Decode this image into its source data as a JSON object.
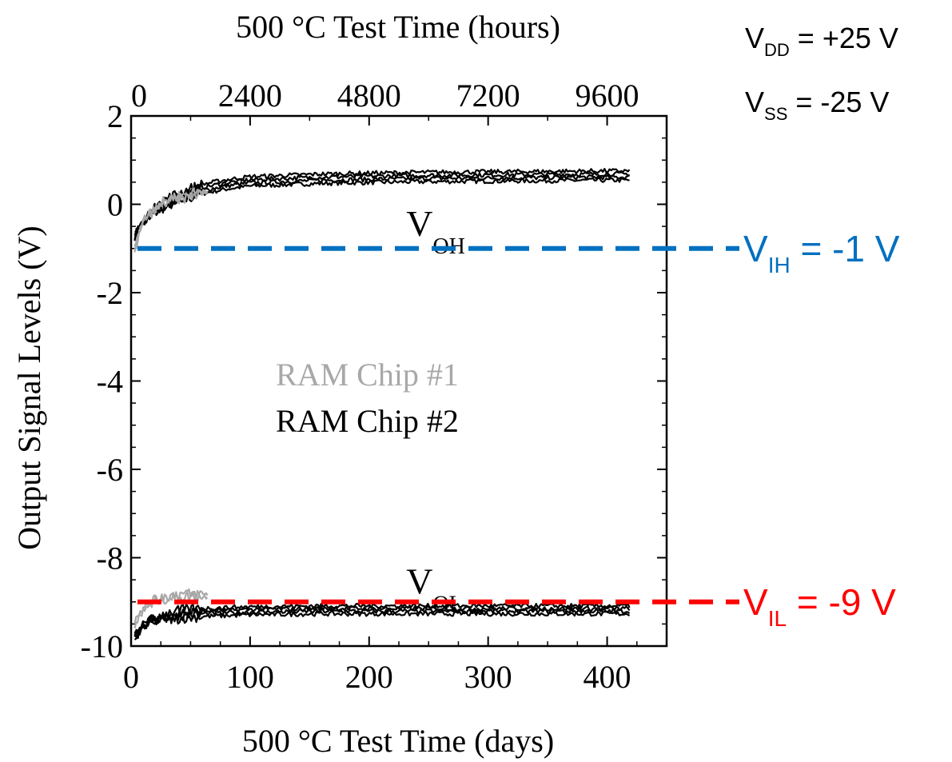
{
  "chart_data": {
    "type": "line",
    "x_axis_bottom": {
      "label": "500 °C Test Time (days)",
      "range": [
        0,
        450
      ],
      "ticks": [
        0,
        100,
        200,
        300,
        400
      ],
      "tick_labels": [
        "0",
        "100",
        "200",
        "300",
        "400"
      ]
    },
    "x_axis_top": {
      "label": "500 °C Test Time (hours)",
      "range": [
        0,
        10800
      ],
      "ticks": [
        0,
        2400,
        4800,
        7200,
        9600
      ],
      "tick_labels": [
        "0",
        "2400",
        "4800",
        "7200",
        "9600"
      ]
    },
    "y_axis": {
      "label": "Output Signal Levels (V)",
      "range": [
        -10,
        2
      ],
      "ticks": [
        -10,
        -8,
        -6,
        -4,
        -2,
        0,
        2
      ],
      "tick_labels": [
        "-10",
        "-8",
        "-6",
        "-4",
        "-2",
        "0",
        "2"
      ]
    },
    "grid": false,
    "legend": {
      "placement": "center",
      "entries": [
        {
          "label": "RAM Chip #1",
          "color": "#a8a8a8"
        },
        {
          "label": "RAM Chip #2",
          "color": "#000000"
        }
      ]
    },
    "series": [
      {
        "name": "RAM Chip #1",
        "color": "#a8a8a8",
        "level": "VOH",
        "x": [
          3,
          8,
          12,
          18,
          25,
          32,
          40,
          48,
          55,
          60,
          65
        ],
        "y": [
          -1.0,
          -0.55,
          -0.3,
          -0.15,
          0.0,
          0.1,
          0.15,
          0.2,
          0.25,
          0.28,
          0.3
        ]
      },
      {
        "name": "RAM Chip #1",
        "color": "#a8a8a8",
        "level": "VOL",
        "x": [
          3,
          8,
          15,
          22,
          30,
          40,
          50,
          60,
          65
        ],
        "y": [
          -9.5,
          -9.25,
          -9.05,
          -8.95,
          -8.9,
          -8.85,
          -8.85,
          -8.85,
          -8.85
        ]
      },
      {
        "name": "RAM Chip #2",
        "color": "#000000",
        "level": "VOH",
        "x": [
          3,
          10,
          20,
          30,
          45,
          60,
          80,
          100,
          130,
          160,
          200,
          250,
          300,
          350,
          400,
          420
        ],
        "y": [
          -0.7,
          -0.4,
          -0.15,
          0.05,
          0.2,
          0.35,
          0.45,
          0.52,
          0.55,
          0.58,
          0.6,
          0.62,
          0.63,
          0.64,
          0.65,
          0.65
        ]
      },
      {
        "name": "RAM Chip #2",
        "color": "#000000",
        "level": "VOL",
        "x": [
          3,
          10,
          20,
          30,
          45,
          60,
          80,
          100,
          130,
          160,
          200,
          250,
          300,
          350,
          400,
          420
        ],
        "y": [
          -9.8,
          -9.55,
          -9.4,
          -9.32,
          -9.27,
          -9.24,
          -9.22,
          -9.2,
          -9.19,
          -9.18,
          -9.18,
          -9.18,
          -9.18,
          -9.18,
          -9.18,
          -9.18
        ]
      }
    ],
    "level_labels": [
      {
        "main": "V",
        "sub": "OH",
        "x": 250,
        "y": -0.5
      },
      {
        "main": "V",
        "sub": "OL",
        "x": 250,
        "y": -8.6
      }
    ],
    "reference_lines": [
      {
        "main": "V",
        "sub": "IH",
        "rest": " = -1 V",
        "y": -1,
        "color": "#0070c0"
      },
      {
        "main": "V",
        "sub": "IL",
        "rest": " = -9 V",
        "y": -9,
        "color": "#ff0000"
      }
    ],
    "annotations": [
      {
        "main": "V",
        "sub": "DD",
        "rest": " = +25 V"
      },
      {
        "main": "V",
        "sub": "SS",
        "rest": " = -25 V"
      }
    ]
  }
}
